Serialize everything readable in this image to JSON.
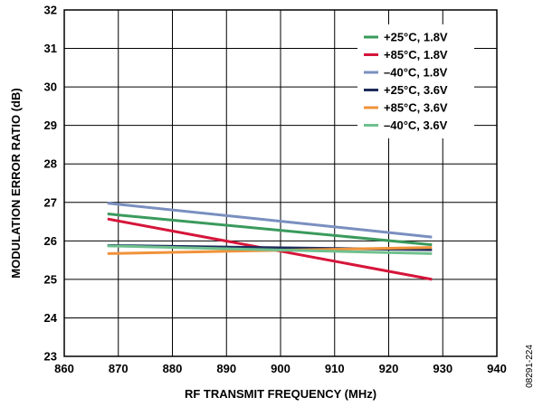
{
  "figure_id": "08291-224",
  "chart_data": {
    "type": "line",
    "xlabel": "RF TRANSMIT FREQUENCY (MHz)",
    "ylabel": "MODULATION ERROR RATIO (dB)",
    "xlim": [
      860,
      940
    ],
    "ylim": [
      23,
      32
    ],
    "xticks": [
      860,
      870,
      880,
      890,
      900,
      910,
      920,
      930,
      940
    ],
    "yticks": [
      23,
      24,
      25,
      26,
      27,
      28,
      29,
      30,
      31,
      32
    ],
    "grid": true,
    "legend_position": "top-right",
    "x": [
      868,
      928
    ],
    "series": [
      {
        "name": "+25°C, 1.8V",
        "color": "#3a9a5c",
        "values": [
          26.7,
          25.9
        ]
      },
      {
        "name": "+85°C, 1.8V",
        "color": "#d6153a",
        "values": [
          26.57,
          25.0
        ]
      },
      {
        "name": "–40°C, 1.8V",
        "color": "#7a8fbf",
        "values": [
          26.98,
          26.1
        ]
      },
      {
        "name": "+25°C, 3.6V",
        "color": "#1c2b5a",
        "values": [
          25.88,
          25.77
        ]
      },
      {
        "name": "+85°C, 3.6V",
        "color": "#f0923a",
        "values": [
          25.67,
          25.83
        ]
      },
      {
        "name": "–40°C, 3.6V",
        "color": "#6fc08e",
        "values": [
          25.87,
          25.67
        ]
      }
    ]
  }
}
